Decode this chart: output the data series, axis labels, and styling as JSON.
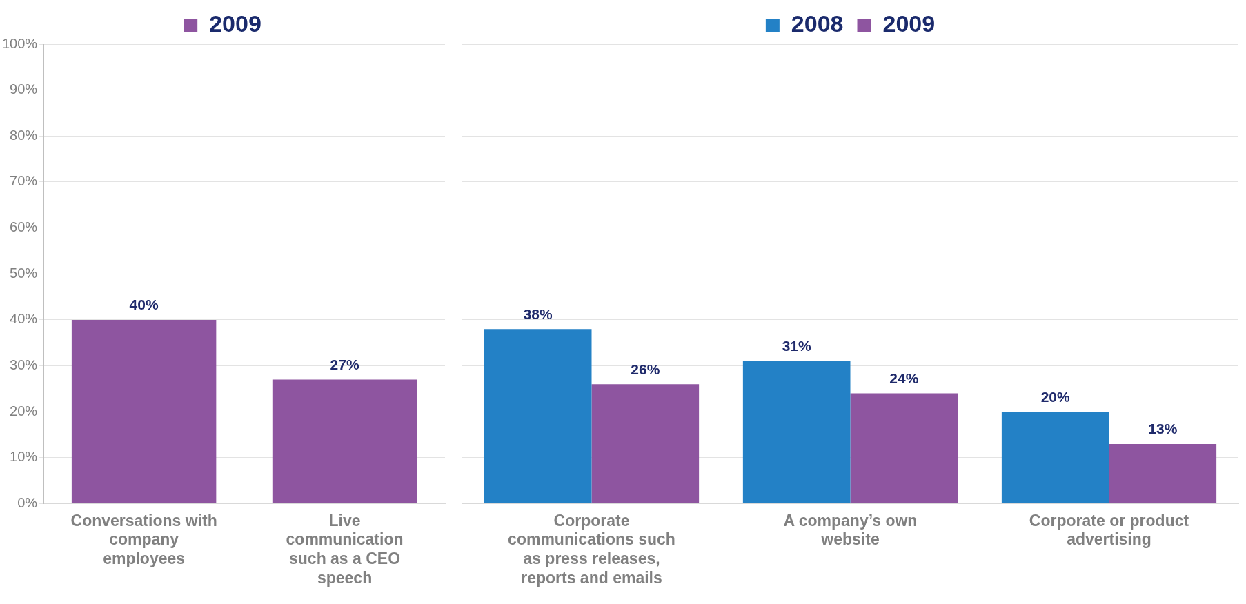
{
  "chart_data": [
    {
      "type": "bar",
      "categories": [
        "Conversations with company employees",
        "Live communication such as a CEO speech"
      ],
      "series": [
        {
          "name": "2009",
          "color": "#8e55a0",
          "values": [
            40,
            27
          ],
          "value_labels": [
            "40%",
            "27%"
          ]
        }
      ],
      "ylim": [
        0,
        100
      ],
      "yticks": [
        {
          "value": 0,
          "label": "0%"
        },
        {
          "value": 10,
          "label": "10%"
        },
        {
          "value": 20,
          "label": "20%"
        },
        {
          "value": 30,
          "label": "30%"
        },
        {
          "value": 40,
          "label": "40%"
        },
        {
          "value": 50,
          "label": "50%"
        },
        {
          "value": 60,
          "label": "60%"
        },
        {
          "value": 70,
          "label": "70%"
        },
        {
          "value": 80,
          "label": "80%"
        },
        {
          "value": 90,
          "label": "90%"
        },
        {
          "value": 100,
          "label": "100%"
        }
      ],
      "grid": "y",
      "legend": "top"
    },
    {
      "type": "bar",
      "categories": [
        "Corporate communications such as press releases, reports and emails",
        "A company’s own website",
        "Corporate or product advertising"
      ],
      "series": [
        {
          "name": "2008",
          "color": "#2381c6",
          "values": [
            38,
            31,
            20
          ],
          "value_labels": [
            "38%",
            "31%",
            "20%"
          ]
        },
        {
          "name": "2009",
          "color": "#8e55a0",
          "values": [
            26,
            24,
            13
          ],
          "value_labels": [
            "26%",
            "24%",
            "13%"
          ]
        }
      ],
      "ylim": [
        0,
        100
      ],
      "yticks": [
        0,
        10,
        20,
        30,
        40,
        50,
        60,
        70,
        80,
        90,
        100
      ],
      "grid": "y",
      "legend": "top",
      "tick_labels": "x"
    }
  ]
}
